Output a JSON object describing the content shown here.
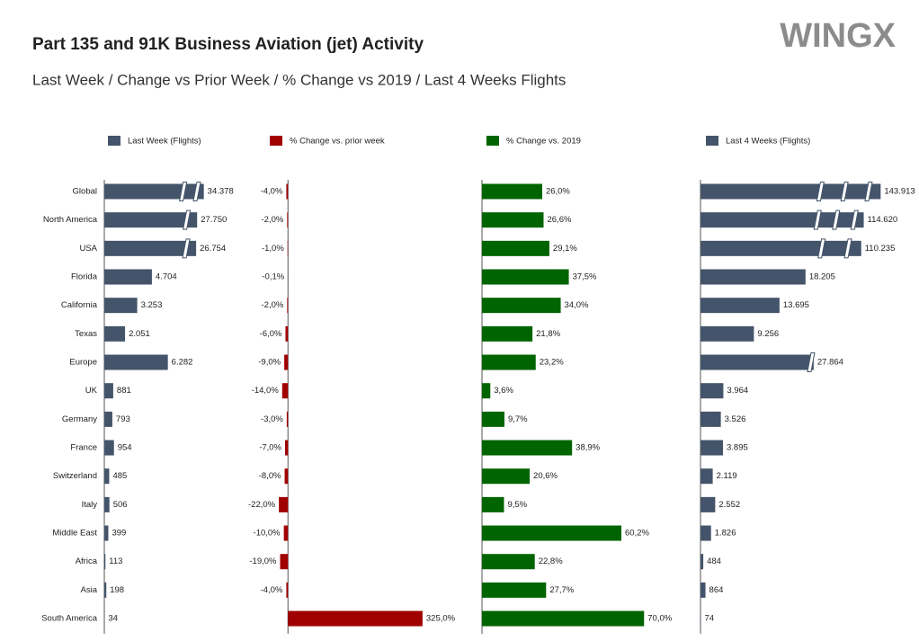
{
  "chart_data": [
    {
      "type": "bar",
      "orientation": "horizontal",
      "title": "Part 135 and 91K Business Aviation (jet) Activity",
      "subtitle": "Last Week / Change vs Prior Week / % Change vs 2019 / Last 4 Weeks Flights",
      "logo": "WINGX",
      "name": "Last Week (Flights)",
      "color": "#44546a",
      "categories": [
        "Global",
        "North America",
        "USA",
        "Florida",
        "California",
        "Texas",
        "Europe",
        "UK",
        "Germany",
        "France",
        "Switzerland",
        "Italy",
        "Middle East",
        "Africa",
        "Asia",
        "South America"
      ],
      "values": [
        34378,
        27750,
        26754,
        4704,
        3253,
        2051,
        6282,
        881,
        793,
        954,
        485,
        506,
        399,
        113,
        198,
        34
      ],
      "value_labels": [
        "34.378",
        "27.750",
        "26.754",
        "4.704",
        "3.253",
        "2.051",
        "6.282",
        "881",
        "793",
        "954",
        "485",
        "506",
        "399",
        "113",
        "198",
        "34"
      ],
      "xlim": [
        0,
        16000
      ]
    },
    {
      "type": "bar",
      "orientation": "horizontal",
      "name": "% Change vs. prior week",
      "color": "#a00000",
      "values": [
        -4,
        -2,
        -1,
        -0.1,
        -2,
        -6,
        -9,
        -14,
        -3,
        -7,
        -8,
        -22,
        -10,
        -19,
        -4,
        325
      ],
      "value_labels": [
        "-4,0%",
        "-2,0%",
        "-1,0%",
        "-0,1%",
        "-2,0%",
        "-6,0%",
        "-9,0%",
        "-14,0%",
        "-3,0%",
        "-7,0%",
        "-8,0%",
        "-22,0%",
        "-10,0%",
        "-19,0%",
        "-4,0%",
        "325,0%"
      ],
      "xlim": [
        -120,
        360
      ]
    },
    {
      "type": "bar",
      "orientation": "horizontal",
      "name": "% Change vs. 2019",
      "color": "#006400",
      "values": [
        26,
        26.6,
        29.1,
        37.5,
        34,
        21.8,
        23.2,
        3.6,
        9.7,
        38.9,
        20.6,
        9.5,
        60.2,
        22.8,
        27.7,
        70
      ],
      "value_labels": [
        "26,0%",
        "26,6%",
        "29,1%",
        "37,5%",
        "34,0%",
        "21,8%",
        "23,2%",
        "3,6%",
        "9,7%",
        "38,9%",
        "20,6%",
        "9,5%",
        "60,2%",
        "22,8%",
        "27,7%",
        "70,0%"
      ],
      "xlim": [
        0,
        80
      ]
    },
    {
      "type": "bar",
      "orientation": "horizontal",
      "name": "Last 4 Weeks (Flights)",
      "color": "#44546a",
      "values": [
        143913,
        114620,
        110235,
        18205,
        13695,
        9256,
        27864,
        3964,
        3526,
        3895,
        2119,
        2552,
        1826,
        484,
        864,
        74
      ],
      "value_labels": [
        "143.913",
        "114.620",
        "110.235",
        "18.205",
        "13.695",
        "9.256",
        "27.864",
        "3.964",
        "3.526",
        "3.895",
        "2.119",
        "2.552",
        "1.826",
        "484",
        "864",
        "74"
      ],
      "xlim": [
        0,
        36000
      ]
    }
  ]
}
